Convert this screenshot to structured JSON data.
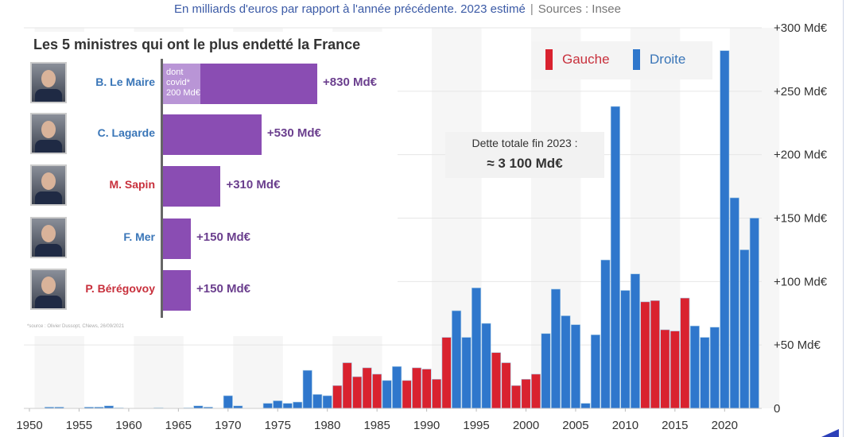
{
  "subtitle": {
    "text": "En milliards d'euros par rapport à l'année précédente. 2023 estimé",
    "separator": "|",
    "source": "Sources : Insee"
  },
  "legend": [
    {
      "label": "Gauche",
      "color": "#d9222f"
    },
    {
      "label": "Droite",
      "color": "#2f77cc"
    }
  ],
  "annotation": {
    "line1": "Dette totale fin 2023 :",
    "line2": "≈ 3 100 Md€"
  },
  "inset": {
    "title": "Les 5 ministres qui ont le plus endetté la France",
    "bar_color": "#8a4db3",
    "covid_color": "#b995d6",
    "max_value": 830,
    "ministers": [
      {
        "name": "B. Le Maire",
        "party": "Droite",
        "value": 830,
        "label": "+830 Md€",
        "covid_value": 200,
        "covid_label": [
          "dont",
          "covid*",
          "200 Md€"
        ]
      },
      {
        "name": "C. Lagarde",
        "party": "Droite",
        "value": 530,
        "label": "+530 Md€"
      },
      {
        "name": "M. Sapin",
        "party": "Gauche",
        "value": 310,
        "label": "+310 Md€"
      },
      {
        "name": "F. Mer",
        "party": "Droite",
        "value": 150,
        "label": "+150 Md€"
      },
      {
        "name": "P. Bérégovoy",
        "party": "Gauche",
        "value": 150,
        "label": "+150 Md€"
      }
    ],
    "footnote": "*source : Olivier Dussopt, CNews, 26/09/2021"
  },
  "chart_data": {
    "type": "bar",
    "title": "",
    "subtitle": "En milliards d'euros par rapport à l'année précédente. 2023 estimé | Sources : Insee",
    "xlabel": "",
    "ylabel": "",
    "ylim": [
      0,
      300
    ],
    "xlim": [
      1950,
      2023
    ],
    "y_ticks": [
      0,
      50,
      100,
      150,
      200,
      250,
      300
    ],
    "y_tick_labels": [
      "0",
      "+50 Md€",
      "+100 Md€",
      "+150 Md€",
      "+200 Md€",
      "+250 Md€",
      "+300 Md€"
    ],
    "x_ticks": [
      1950,
      1955,
      1960,
      1965,
      1970,
      1975,
      1980,
      1985,
      1990,
      1995,
      2000,
      2005,
      2010,
      2015,
      2020
    ],
    "grid": true,
    "legend_position": "top-right",
    "colors": {
      "Gauche": "#d9222f",
      "Droite": "#2f77cc"
    },
    "years": [
      1950,
      1951,
      1952,
      1953,
      1954,
      1955,
      1956,
      1957,
      1958,
      1959,
      1960,
      1961,
      1962,
      1963,
      1964,
      1965,
      1966,
      1967,
      1968,
      1969,
      1970,
      1971,
      1972,
      1973,
      1974,
      1975,
      1976,
      1977,
      1978,
      1979,
      1980,
      1981,
      1982,
      1983,
      1984,
      1985,
      1986,
      1987,
      1988,
      1989,
      1990,
      1991,
      1992,
      1993,
      1994,
      1995,
      1996,
      1997,
      1998,
      1999,
      2000,
      2001,
      2002,
      2003,
      2004,
      2005,
      2006,
      2007,
      2008,
      2009,
      2010,
      2011,
      2012,
      2013,
      2014,
      2015,
      2016,
      2017,
      2018,
      2019,
      2020,
      2021,
      2022,
      2023
    ],
    "values": [
      0,
      0,
      1,
      1,
      0,
      0,
      1,
      1,
      2,
      0.5,
      0,
      0,
      0,
      0.5,
      0,
      0,
      0.5,
      2,
      1,
      0,
      10,
      2,
      0,
      0,
      4,
      6,
      4,
      5,
      30,
      11,
      10,
      18,
      36,
      25,
      32,
      27,
      22,
      33,
      22,
      32,
      31,
      23,
      56,
      77,
      56,
      95,
      67,
      44,
      36,
      18,
      23,
      27,
      59,
      94,
      73,
      66,
      4,
      58,
      117,
      238,
      93,
      106,
      84,
      85,
      62,
      61,
      87,
      65,
      56,
      64,
      282,
      166,
      125,
      150
    ],
    "party": [
      "D",
      "D",
      "D",
      "D",
      "D",
      "D",
      "D",
      "D",
      "D",
      "D",
      "D",
      "D",
      "D",
      "D",
      "D",
      "D",
      "D",
      "D",
      "D",
      "D",
      "D",
      "D",
      "D",
      "D",
      "D",
      "D",
      "D",
      "D",
      "D",
      "D",
      "D",
      "G",
      "G",
      "G",
      "G",
      "G",
      "D",
      "D",
      "G",
      "G",
      "G",
      "G",
      "G",
      "D",
      "D",
      "D",
      "D",
      "G",
      "G",
      "G",
      "G",
      "G",
      "D",
      "D",
      "D",
      "D",
      "D",
      "D",
      "D",
      "D",
      "D",
      "D",
      "G",
      "G",
      "G",
      "G",
      "G",
      "D",
      "D",
      "D",
      "D",
      "D",
      "D",
      "D"
    ]
  }
}
